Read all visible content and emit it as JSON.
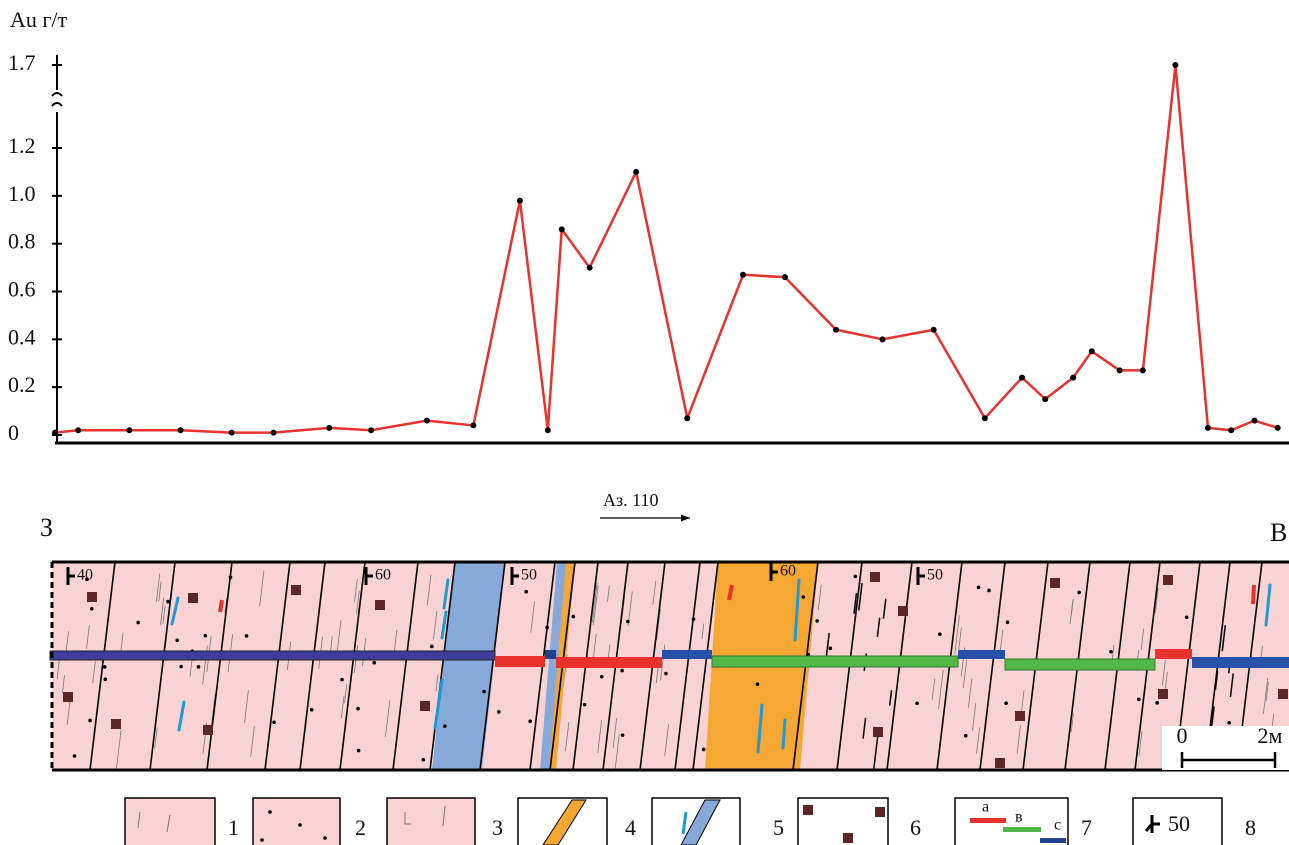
{
  "chart_data": {
    "type": "line",
    "y_label": "Au г/т",
    "x": [
      0.0,
      0.5,
      1.6,
      2.7,
      3.8,
      4.7,
      5.9,
      6.8,
      8.0,
      9.0,
      10.0,
      10.6,
      10.9,
      11.5,
      12.5,
      13.6,
      14.8,
      15.7,
      16.8,
      17.8,
      18.9,
      20.0,
      20.8,
      21.3,
      21.9,
      22.3,
      22.9,
      23.4,
      24.1,
      24.8,
      25.3,
      25.8,
      26.3
    ],
    "values": [
      0.01,
      0.02,
      0.02,
      0.02,
      0.01,
      0.01,
      0.03,
      0.02,
      0.06,
      0.04,
      0.98,
      0.02,
      0.86,
      0.7,
      1.1,
      0.07,
      0.67,
      0.66,
      0.44,
      0.4,
      0.44,
      0.07,
      0.24,
      0.15,
      0.24,
      0.35,
      0.27,
      0.27,
      1.7,
      0.03,
      0.02,
      0.06,
      0.03
    ],
    "color": "#e8322b",
    "marker_color": "#000000",
    "xlim": [
      0,
      26.5
    ],
    "ylim": [
      0,
      1.7
    ],
    "yticks": [
      0,
      0.2,
      0.4,
      0.6,
      0.8,
      {
        "value": 1,
        "label": "1.0"
      },
      1.2,
      1.7
    ],
    "broken_axis": true,
    "grid": false
  },
  "section": {
    "azimuth": "Аз. 110",
    "west": "З",
    "east": "В",
    "dips": [
      "40",
      "60",
      "50",
      "60",
      "50"
    ],
    "scale": [
      "0",
      "2м"
    ],
    "legend": [
      "1",
      "2",
      "3",
      "4",
      "5",
      "6",
      "7",
      "8"
    ],
    "legend_sub": [
      "а",
      "в",
      "с"
    ],
    "legend_dip": "50"
  }
}
